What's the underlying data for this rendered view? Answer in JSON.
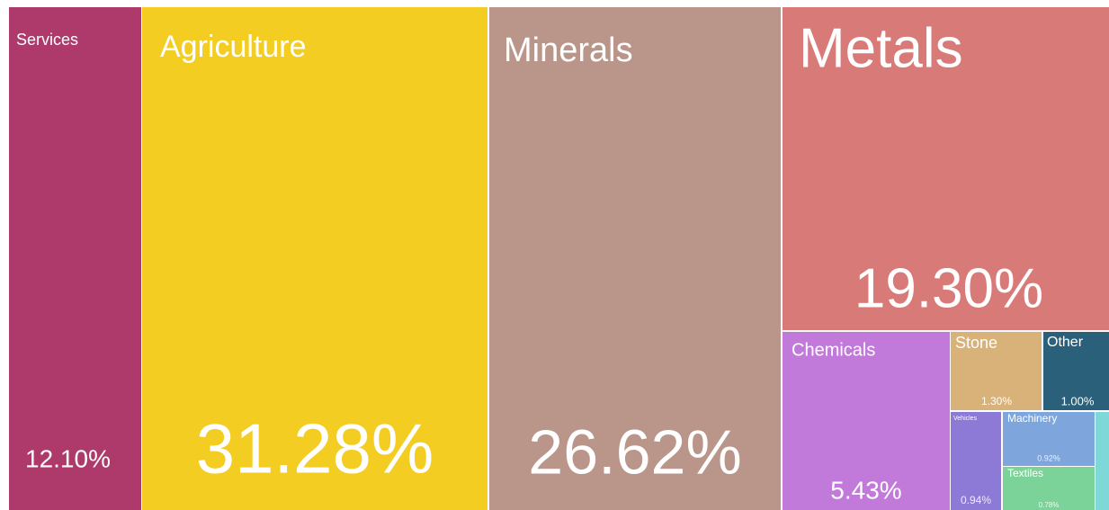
{
  "chart_data": {
    "type": "treemap",
    "categories": [
      "Services",
      "Agriculture",
      "Minerals",
      "Metals",
      "Chemicals",
      "Stone",
      "Other",
      "Vehicles",
      "Machinery",
      "Textiles",
      null
    ],
    "values": [
      12.1,
      31.28,
      26.62,
      19.3,
      5.43,
      1.3,
      1.0,
      0.94,
      0.92,
      0.78,
      0.33
    ],
    "value_labels": [
      "12.10%",
      "31.28%",
      "26.62%",
      "19.30%",
      "5.43%",
      "1.30%",
      "1.00%",
      "0.94%",
      "0.92%",
      "0.78%",
      null
    ],
    "colors": [
      "#ae3a6b",
      "#f4cd23",
      "#b9958a",
      "#d87a78",
      "#c27ada",
      "#d9b27a",
      "#2a6079",
      "#8c7ad6",
      "#7ea6dd",
      "#7cd39a",
      "#7fd8d8"
    ]
  }
}
